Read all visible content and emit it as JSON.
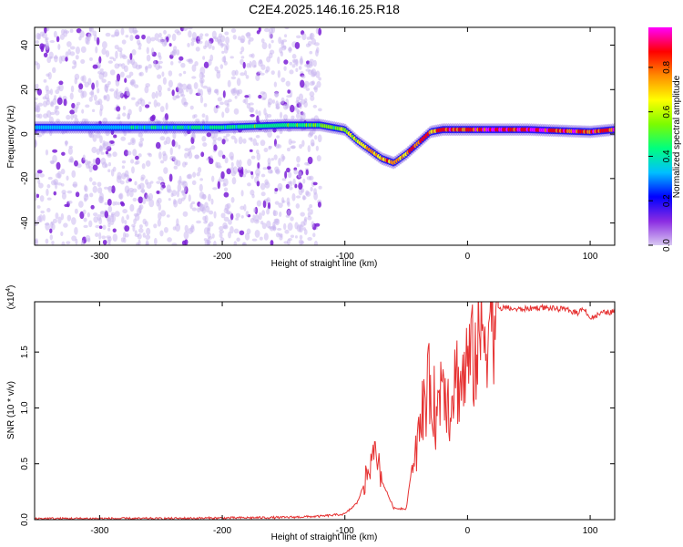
{
  "title": "C2E4.2025.146.16.25.R18",
  "chart_data": [
    {
      "type": "heatmap",
      "xlabel": "Height of straight line (km)",
      "ylabel": "Frequency (Hz)",
      "xlim": [
        -353,
        120
      ],
      "ylim": [
        -50,
        48
      ],
      "xticks": [
        -300,
        -200,
        -100,
        0,
        100
      ],
      "yticks": [
        -40,
        -20,
        0,
        20,
        40
      ],
      "colorbar": {
        "label": "Normalized spectral amplitude",
        "range": [
          0,
          0.98
        ],
        "ticks": [
          0.0,
          0.2,
          0.4,
          0.6,
          0.8
        ],
        "colors": [
          "#d9c9f2",
          "#8a2be2",
          "#0000ff",
          "#00bfff",
          "#00ff7f",
          "#7cfc00",
          "#ffff00",
          "#ff8c00",
          "#ff0000",
          "#ff00ff"
        ]
      },
      "ridge": {
        "x": [
          -353,
          -300,
          -250,
          -200,
          -150,
          -120,
          -100,
          -90,
          -80,
          -70,
          -60,
          -50,
          -40,
          -30,
          -20,
          -10,
          0,
          50,
          100,
          120
        ],
        "y": [
          3,
          3,
          3,
          3,
          4,
          4,
          2,
          -3,
          -7,
          -11,
          -13,
          -9,
          -4,
          1,
          2,
          2,
          2,
          2,
          1,
          2
        ],
        "amplitude": [
          0.35,
          0.35,
          0.4,
          0.45,
          0.5,
          0.55,
          0.6,
          0.7,
          0.75,
          0.8,
          0.85,
          0.85,
          0.85,
          0.85,
          0.9,
          0.9,
          0.95,
          0.98,
          0.9,
          0.9
        ]
      },
      "noise_region": {
        "x_from": -353,
        "x_to": -120,
        "amplitude": 0.15
      }
    },
    {
      "type": "line",
      "xlabel": "Height of straight line (km)",
      "ylabel": "SNR (10 * v/v)",
      "scale_note": "(x10^4)",
      "xlim": [
        -353,
        120
      ],
      "ylim": [
        0,
        1.95
      ],
      "xticks": [
        -300,
        -200,
        -100,
        0,
        100
      ],
      "yticks": [
        0.0,
        0.5,
        1.0,
        1.5
      ],
      "color": "#e63232",
      "series": [
        {
          "x": [
            -353,
            -250,
            -150,
            -120,
            -100,
            -90,
            -80,
            -75,
            -70,
            -60,
            -50,
            -45,
            -40,
            -35,
            -30,
            -25,
            -20,
            -15,
            -10,
            -5,
            0,
            5,
            10,
            15,
            20,
            25,
            30,
            40,
            60,
            80,
            90,
            95,
            100,
            110,
            120
          ],
          "y": [
            0.01,
            0.01,
            0.02,
            0.03,
            0.05,
            0.15,
            0.45,
            0.65,
            0.35,
            0.1,
            0.1,
            0.5,
            0.7,
            1.1,
            1.2,
            0.9,
            1.4,
            1.0,
            1.3,
            1.2,
            1.4,
            1.45,
            1.6,
            1.75,
            1.85,
            1.88,
            1.9,
            1.88,
            1.9,
            1.88,
            1.85,
            1.9,
            1.8,
            1.85,
            1.86
          ]
        }
      ]
    }
  ]
}
